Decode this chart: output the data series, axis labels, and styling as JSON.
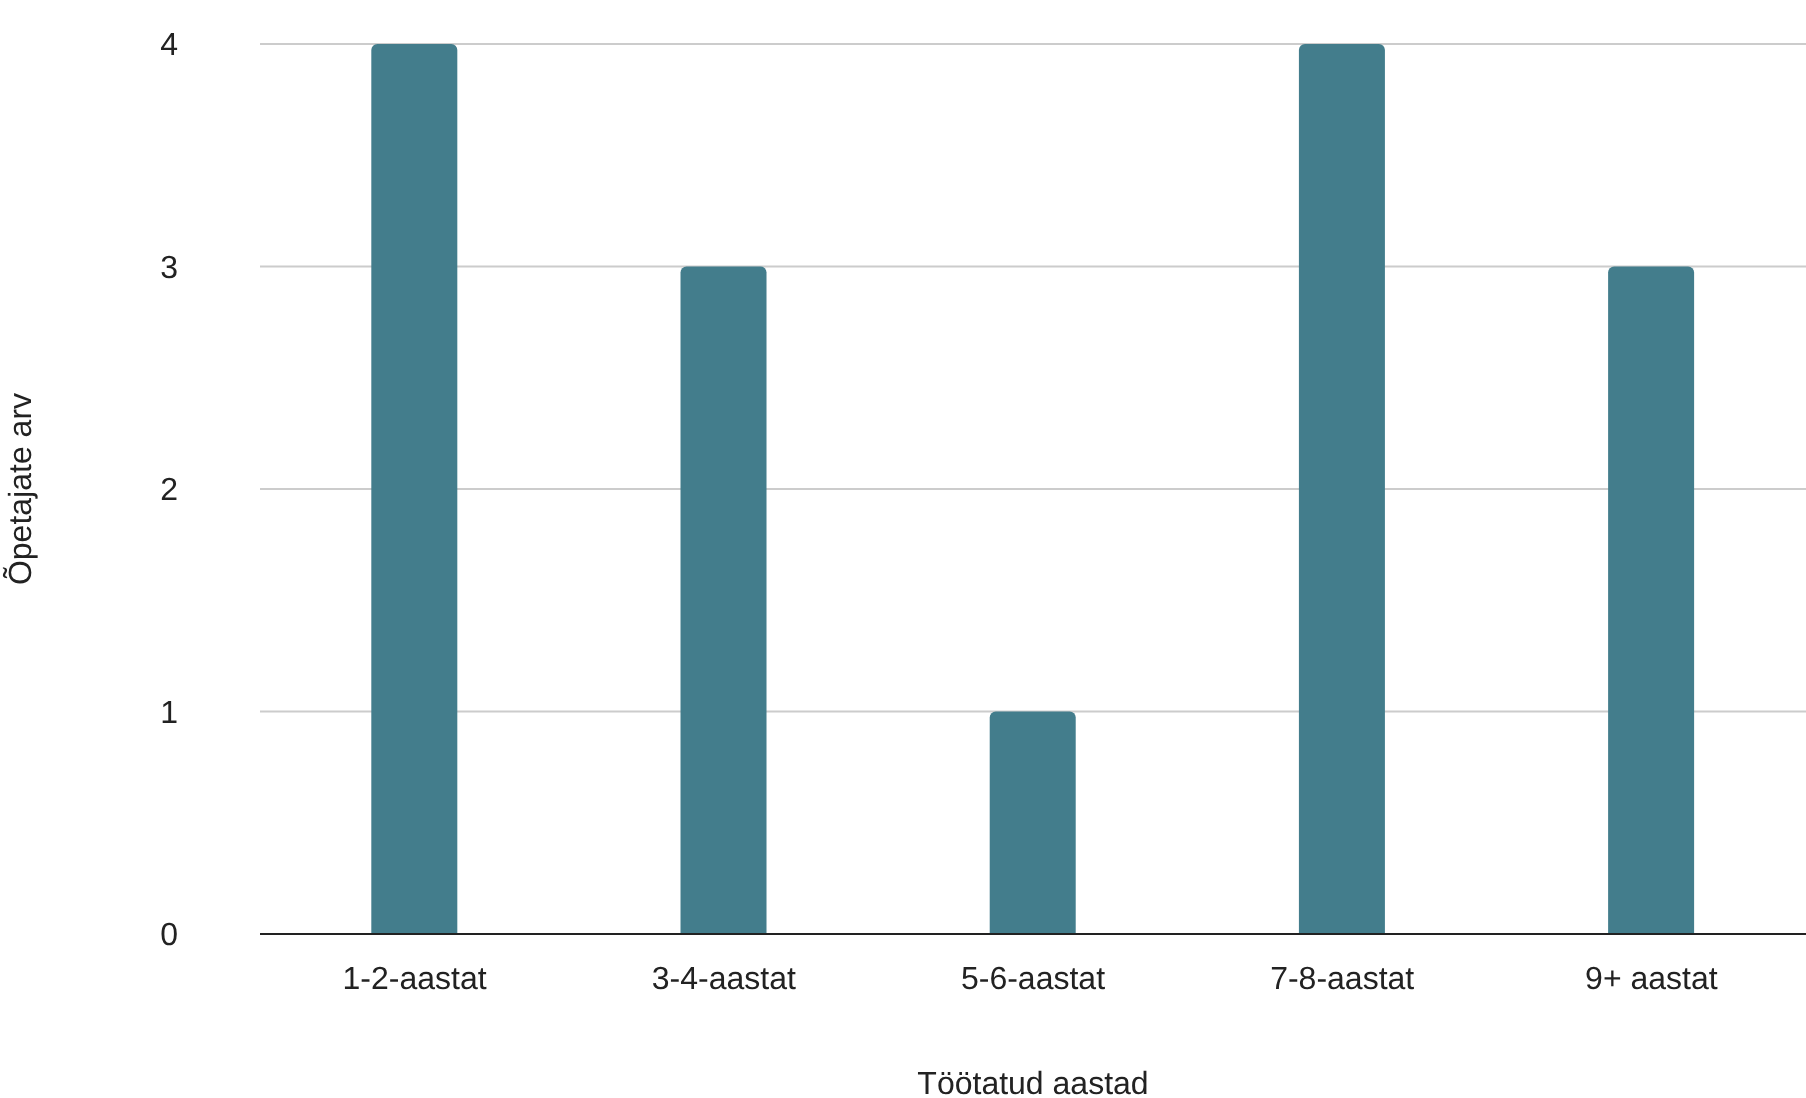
{
  "chart_data": {
    "type": "bar",
    "xlabel": "Töötatud aastad",
    "ylabel": "Õpetajate arv",
    "categories": [
      "1-2-aastat",
      "3-4-aastat",
      "5-6-aastat",
      "7-8-aastat",
      "9+ aastat"
    ],
    "values": [
      4,
      3,
      1,
      4,
      3
    ],
    "color": "#437d8c",
    "ylim": [
      0,
      4
    ],
    "yticks": [
      0,
      1,
      2,
      3,
      4
    ],
    "grid": "y"
  }
}
